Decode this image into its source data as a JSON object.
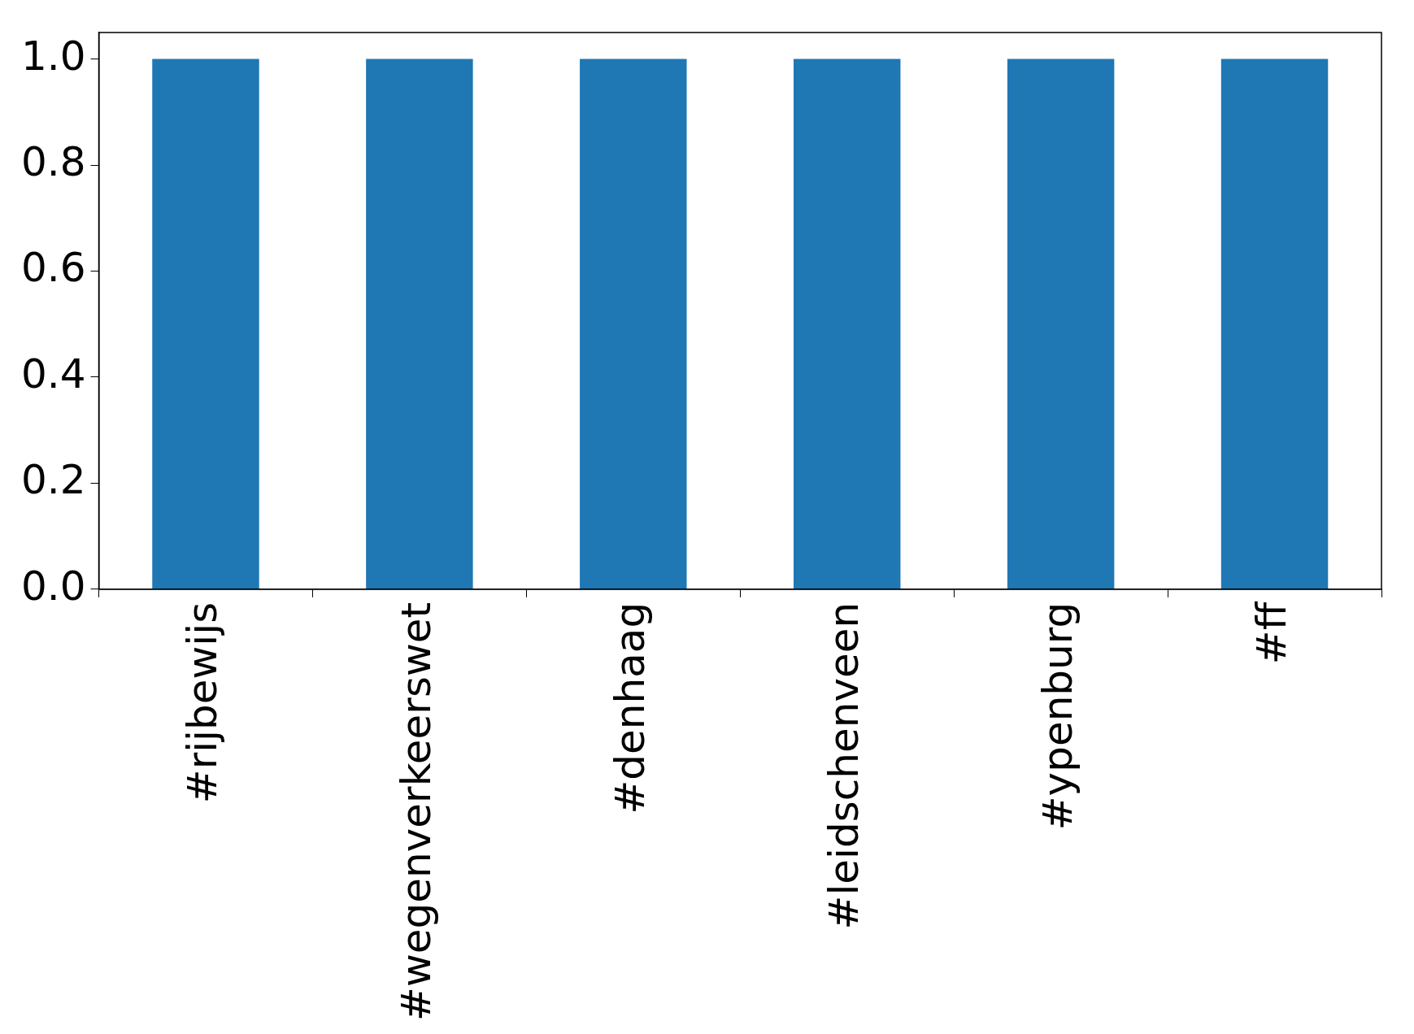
{
  "chart_data": {
    "type": "bar",
    "categories": [
      "#rijbewijs",
      "#wegenverkeerswet",
      "#denhaag",
      "#leidschenveen",
      "#ypenburg",
      "#ff"
    ],
    "values": [
      1,
      1,
      1,
      1,
      1,
      1
    ],
    "color": "#1f77b4",
    "ylim": [
      0,
      1.05
    ],
    "yticks": [
      {
        "value": 0,
        "label": "0.0"
      },
      {
        "value": 0.2,
        "label": "0.2"
      },
      {
        "value": 0.4,
        "label": "0.4"
      },
      {
        "value": 0.6,
        "label": "0.6"
      },
      {
        "value": 0.8,
        "label": "0.8"
      },
      {
        "value": 1,
        "label": "1.0"
      }
    ],
    "grid": false,
    "legend": false
  }
}
